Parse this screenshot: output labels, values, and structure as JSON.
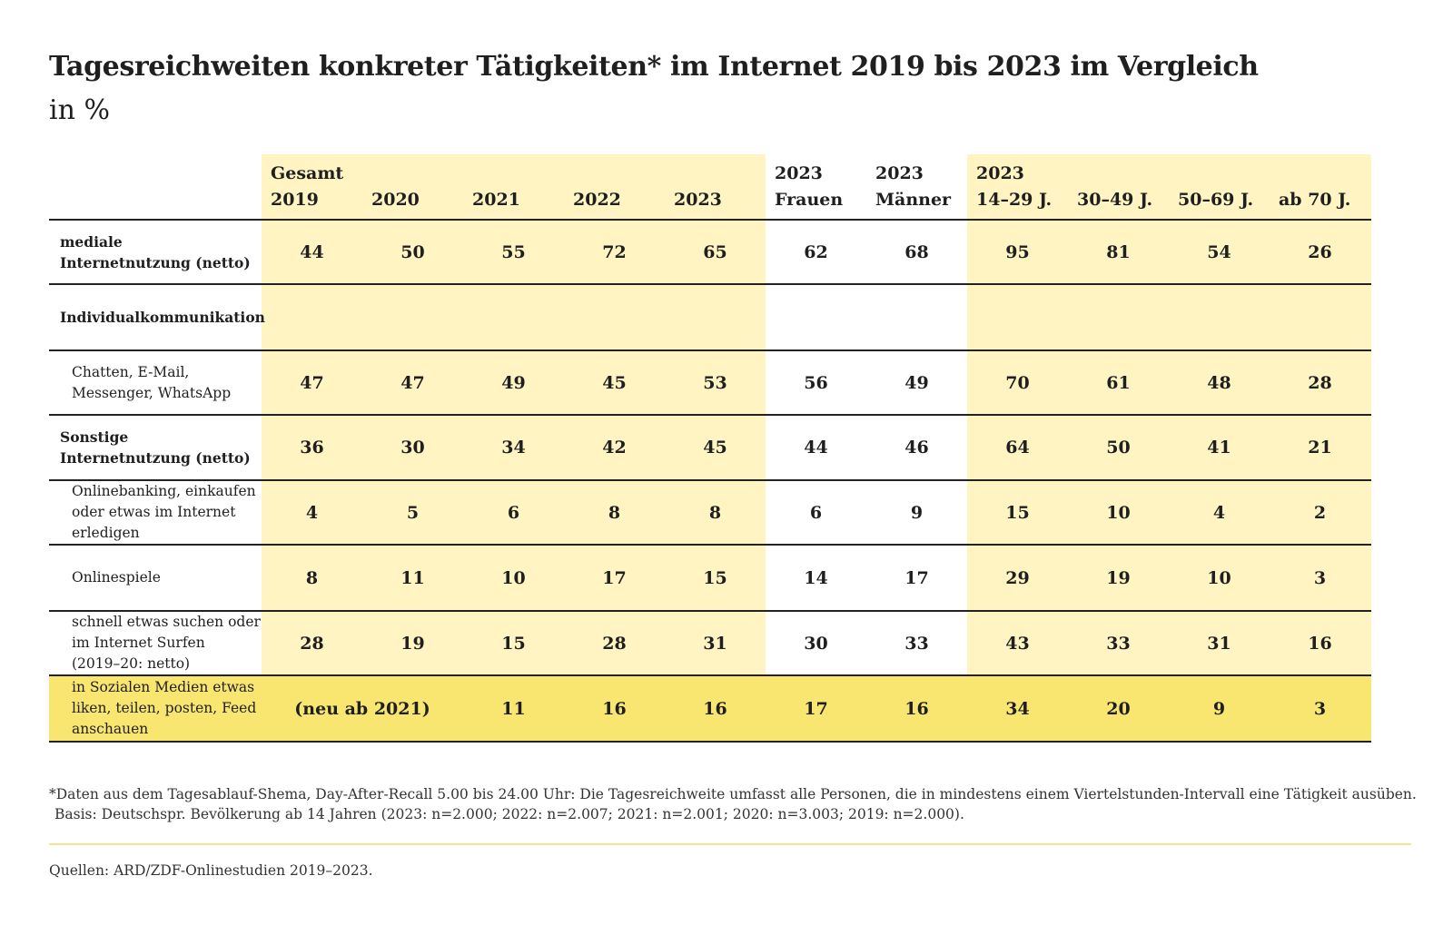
{
  "title": "Tagesreichweiten konkreter Tätigkeiten* im Internet 2019 bis 2023 im Vergleich",
  "subtitle": "in %",
  "chart_data": {
    "type": "table",
    "column_groups": [
      {
        "label": "Gesamt",
        "columns": [
          "2019",
          "2020",
          "2021",
          "2022",
          "2023"
        ]
      },
      {
        "label": "2023",
        "columns": [
          "Frauen"
        ]
      },
      {
        "label": "2023",
        "columns": [
          "Männer"
        ]
      },
      {
        "label": "2023",
        "columns": [
          "14–29 J.",
          "30–49 J.",
          "50–69 J.",
          "ab 70 J."
        ]
      }
    ],
    "header_line1": [
      "Gesamt",
      "",
      "",
      "",
      "",
      "2023",
      "2023",
      "2023",
      "",
      "",
      ""
    ],
    "header_line2": [
      "2019",
      "2020",
      "2021",
      "2022",
      "2023",
      "Frauen",
      "Männer",
      "14–29 J.",
      "30–49 J.",
      "50–69 J.",
      "ab 70 J."
    ],
    "rows": [
      {
        "label": [
          "mediale",
          "Internetnutzung (netto)"
        ],
        "bold": true,
        "values": [
          "44",
          "50",
          "55",
          "72",
          "65",
          "62",
          "68",
          "95",
          "81",
          "54",
          "26"
        ]
      },
      {
        "label": [
          "Individualkommunikation"
        ],
        "bold": true,
        "values": [
          "",
          "",
          "",
          "",
          "",
          "",
          "",
          "",
          "",
          "",
          ""
        ]
      },
      {
        "label": [
          "Chatten, E-Mail,",
          "Messenger, WhatsApp"
        ],
        "bold": false,
        "values": [
          "47",
          "47",
          "49",
          "45",
          "53",
          "56",
          "49",
          "70",
          "61",
          "48",
          "28"
        ]
      },
      {
        "label": [
          "Sonstige",
          "Internetnutzung (netto)"
        ],
        "bold": true,
        "values": [
          "36",
          "30",
          "34",
          "42",
          "45",
          "44",
          "46",
          "64",
          "50",
          "41",
          "21"
        ]
      },
      {
        "label": [
          "Onlinebanking, einkaufen",
          "oder etwas im Internet",
          "erledigen"
        ],
        "bold": false,
        "values": [
          "4",
          "5",
          "6",
          "8",
          "8",
          "6",
          "9",
          "15",
          "10",
          "4",
          "2"
        ]
      },
      {
        "label": [
          "Onlinespiele"
        ],
        "bold": false,
        "values": [
          "8",
          "11",
          "10",
          "17",
          "15",
          "14",
          "17",
          "29",
          "19",
          "10",
          "3"
        ]
      },
      {
        "label": [
          "schnell etwas suchen oder",
          "im Internet Surfen",
          "(2019–20: netto)"
        ],
        "bold": false,
        "values": [
          "28",
          "19",
          "15",
          "28",
          "31",
          "30",
          "33",
          "43",
          "33",
          "31",
          "16"
        ]
      },
      {
        "label": [
          "in Sozialen Medien etwas",
          "liken, teilen, posten, Feed",
          "anschauen"
        ],
        "bold": false,
        "merged_note": "(neu ab 2021)",
        "values": [
          "",
          "",
          "11",
          "16",
          "16",
          "17",
          "16",
          "34",
          "20",
          "9",
          "3"
        ]
      }
    ]
  },
  "footnote": "*Daten aus dem Tagesablauf-Shema, Day-After-Recall 5.00 bis 24.00 Uhr: Die Tagesreichweite umfasst alle Personen, die in mindestens einem Viertelstunden-Intervall eine Tätigkeit ausüben.",
  "basis": "Basis: Deutschspr. Bevölkerung ab 14 Jahren (2023: n=2.000; 2022: n=2.007; 2021: n=2.001; 2020: n=3.003; 2019: n=2.000).",
  "source": "Quellen: ARD/ZDF-Onlinestudien 2019–2023.",
  "colors": {
    "band": "#fff4c2",
    "highlight_row": "#f8e670",
    "rule": "#222222",
    "source_rule": "#f4e58c"
  }
}
